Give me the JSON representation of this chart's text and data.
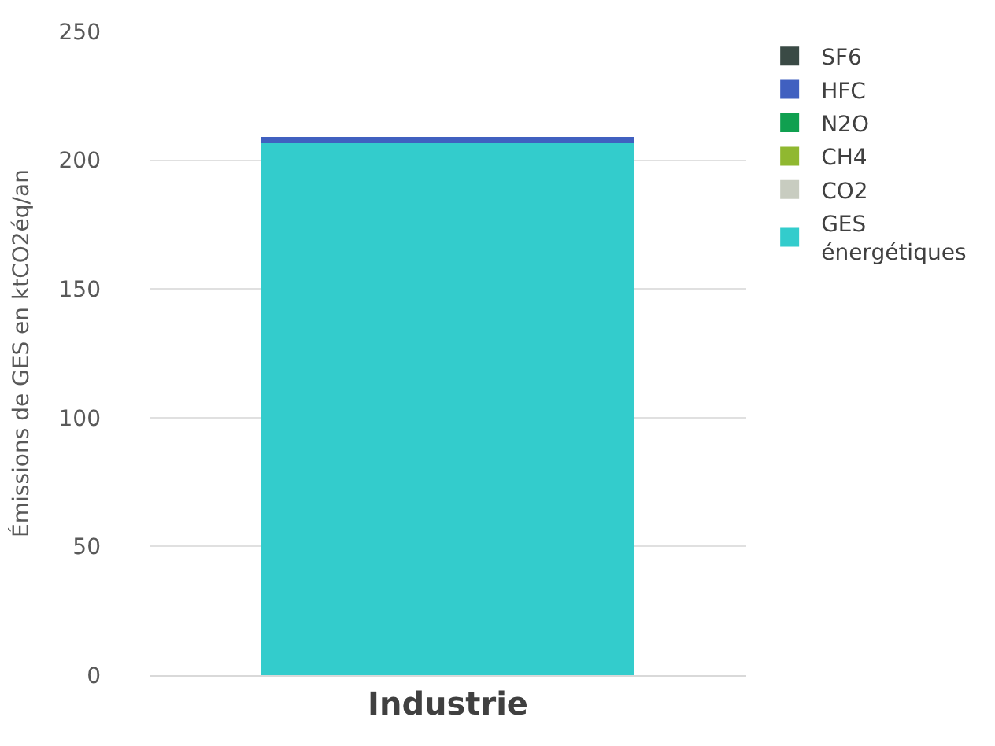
{
  "chart_data": {
    "type": "bar",
    "stacked": true,
    "categories": [
      "Industrie"
    ],
    "ylabel": "Émissions de GES en ktCO2éq/an",
    "ylim": [
      0,
      250
    ],
    "yticks": [
      0,
      50,
      100,
      150,
      200,
      250
    ],
    "grid": "y",
    "legend": "right",
    "series": [
      {
        "name": "GES énergétiques",
        "color": "#33cccc",
        "values": [
          206.5
        ]
      },
      {
        "name": "CO2",
        "color": "#c8ccc0",
        "values": [
          0
        ]
      },
      {
        "name": "CH4",
        "color": "#90b830",
        "values": [
          0
        ]
      },
      {
        "name": "N2O",
        "color": "#10a050",
        "values": [
          0
        ]
      },
      {
        "name": "HFC",
        "color": "#4060c0",
        "values": [
          2.5
        ]
      },
      {
        "name": "SF6",
        "color": "#3a4a45",
        "values": [
          0
        ]
      }
    ]
  }
}
